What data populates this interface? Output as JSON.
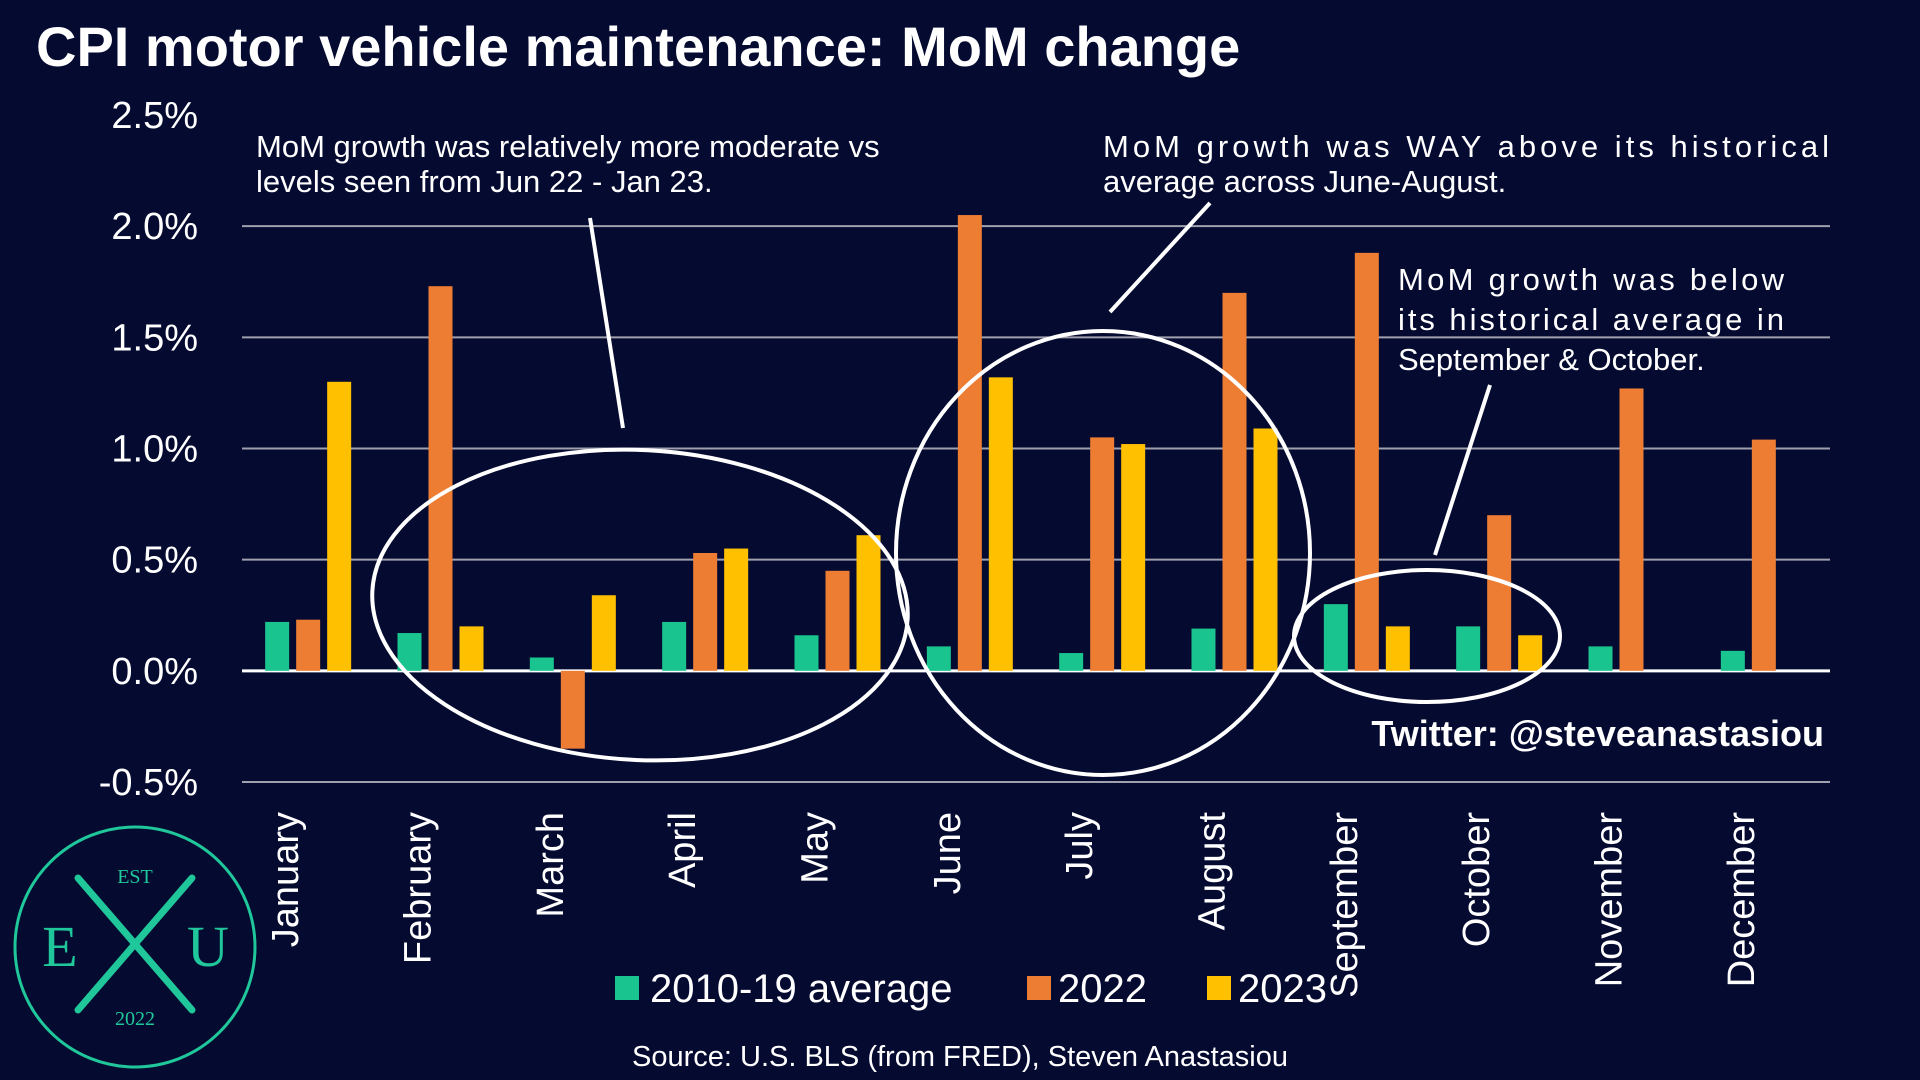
{
  "chart_data": {
    "type": "bar",
    "title": "CPI motor vehicle maintenance: MoM change",
    "categories": [
      "January",
      "February",
      "March",
      "April",
      "May",
      "June",
      "July",
      "August",
      "September",
      "October",
      "November",
      "December"
    ],
    "series": [
      {
        "name": "2010-19 average",
        "color": "#19c48f",
        "values": [
          0.22,
          0.17,
          0.06,
          0.22,
          0.16,
          0.11,
          0.08,
          0.19,
          0.3,
          0.2,
          0.11,
          0.09
        ]
      },
      {
        "name": "2022",
        "color": "#ee7d34",
        "values": [
          0.23,
          1.73,
          -0.35,
          0.53,
          0.45,
          2.05,
          1.05,
          1.7,
          1.88,
          0.7,
          1.27,
          1.04
        ]
      },
      {
        "name": "2023",
        "color": "#ffc000",
        "values": [
          1.3,
          0.2,
          0.34,
          0.55,
          0.61,
          1.32,
          1.02,
          1.09,
          0.2,
          0.16,
          null,
          null
        ]
      }
    ],
    "ylim": [
      -0.5,
      2.5
    ],
    "yticks": [
      "2.5%",
      "2.0%",
      "1.5%",
      "1.0%",
      "0.5%",
      "0.0%",
      "-0.5%"
    ],
    "ytick_values": [
      2.5,
      2.0,
      1.5,
      1.0,
      0.5,
      0.0,
      -0.5
    ],
    "grid": true,
    "legend_position": "bottom"
  },
  "annotations": [
    {
      "id": "note-moderate",
      "lines": [
        "MoM growth was relatively more moderate vs",
        "levels seen from Jun 22 - Jan 23."
      ]
    },
    {
      "id": "note-way-above",
      "lines": [
        "MoM  growth  was  WAY  above  its  historical",
        "average across June-August."
      ]
    },
    {
      "id": "note-below",
      "lines": [
        "MoM  growth  was  below",
        "its  historical  average  in",
        "September & October."
      ]
    }
  ],
  "handle": "Twitter: @steveanastasiou",
  "source": "Source: U.S. BLS (from FRED), Steven Anastasiou",
  "logo": {
    "top": "EST",
    "left": "E",
    "right": "U",
    "bottom": "2022",
    "color": "#1fc79a"
  }
}
